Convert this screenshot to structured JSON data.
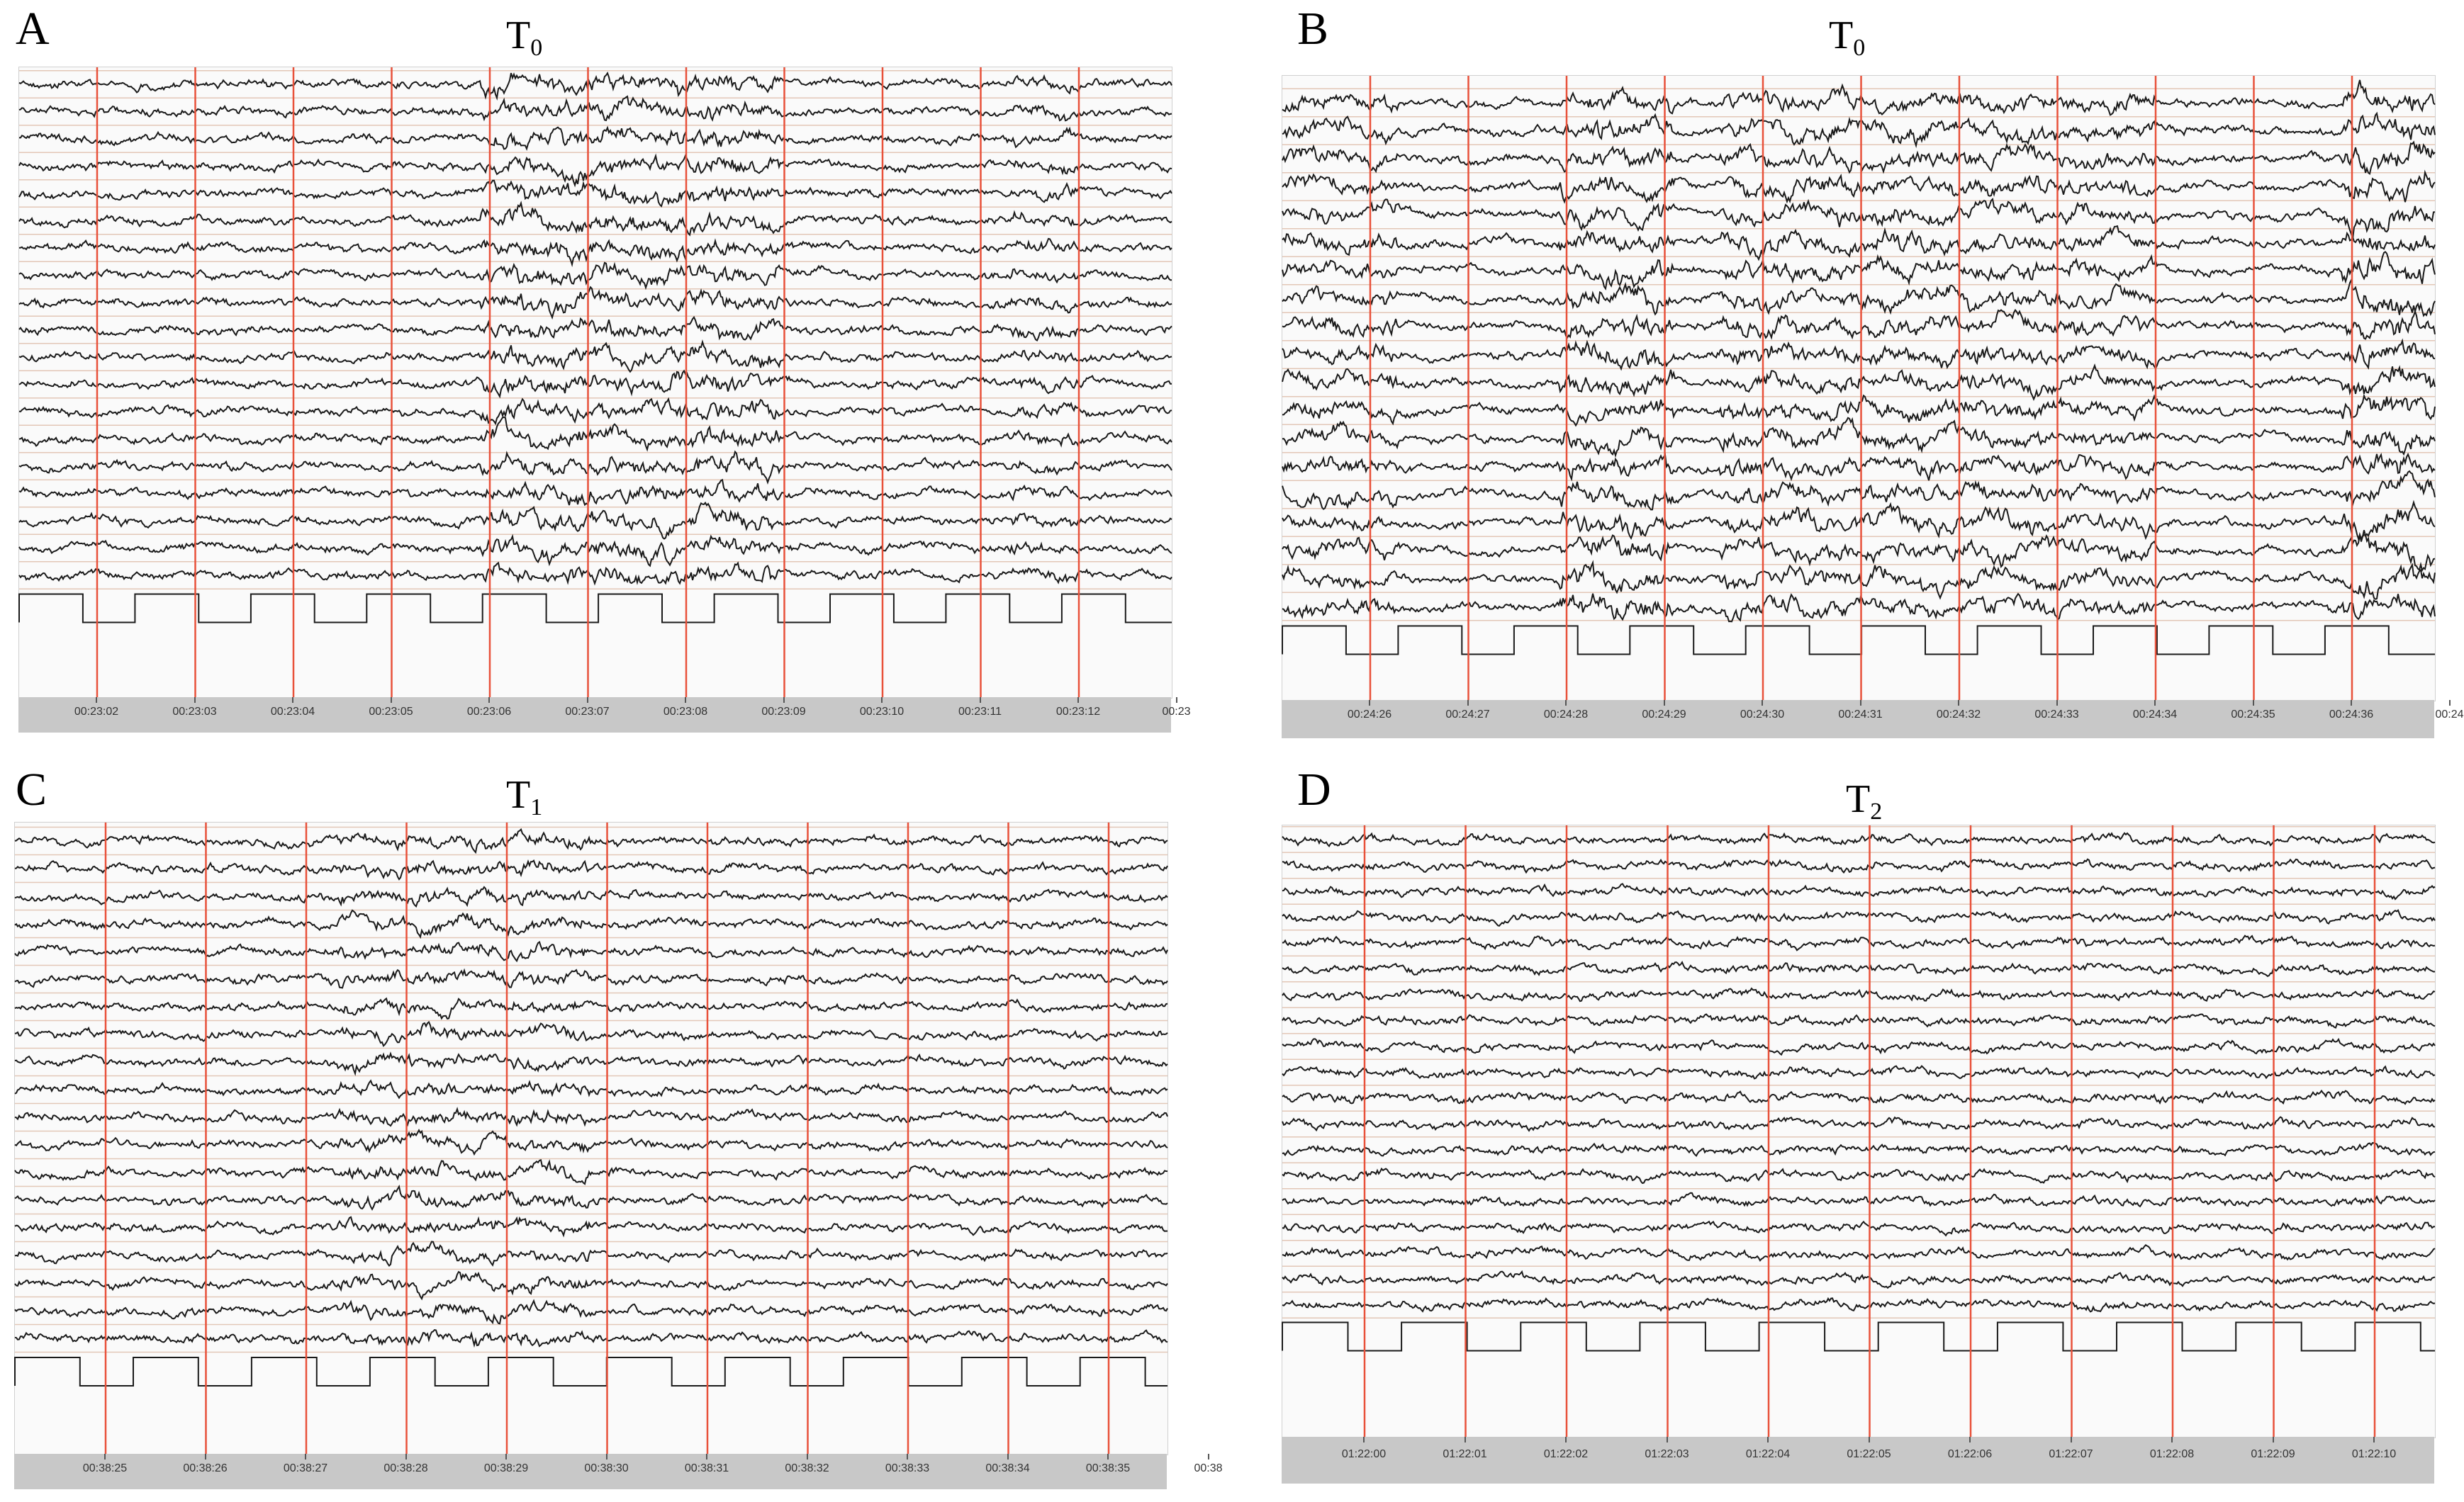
{
  "panels": [
    {
      "id": "A",
      "letter": "A",
      "title_base": "T",
      "title_sub": "0",
      "time_labels": [
        "00:23:02",
        "00:23:03",
        "00:23:04",
        "00:23:05",
        "00:23:06",
        "00:23:07",
        "00:23:08",
        "00:23:09",
        "00:23:10",
        "00:23:11",
        "00:23:12",
        "00:23"
      ],
      "channels": 20,
      "bursts": [
        [
          0.4,
          0.66,
          2.2
        ],
        [
          0.86,
          0.92,
          1.6
        ]
      ]
    },
    {
      "id": "B",
      "letter": "B",
      "title_base": "T",
      "title_sub": "0",
      "time_labels": [
        "00:24:26",
        "00:24:27",
        "00:24:28",
        "00:24:29",
        "00:24:30",
        "00:24:31",
        "00:24:32",
        "00:24:33",
        "00:24:34",
        "00:24:35",
        "00:24:36",
        "00:24"
      ],
      "channels": 20,
      "bursts": [
        [
          0.0,
          0.1,
          2.0
        ],
        [
          0.24,
          0.34,
          2.6
        ],
        [
          0.38,
          0.66,
          2.2
        ],
        [
          0.66,
          0.76,
          2.0
        ],
        [
          0.92,
          1.0,
          2.8
        ]
      ]
    },
    {
      "id": "C",
      "letter": "C",
      "title_base": "T",
      "title_sub": "1",
      "time_labels": [
        "00:38:25",
        "00:38:26",
        "00:38:27",
        "00:38:28",
        "00:38:29",
        "00:38:30",
        "00:38:31",
        "00:38:32",
        "00:38:33",
        "00:38:34",
        "00:38:35",
        "00:38"
      ],
      "channels": 20,
      "bursts": [
        [
          0.28,
          0.5,
          1.7
        ]
      ]
    },
    {
      "id": "D",
      "letter": "D",
      "title_base": "T",
      "title_sub": "2",
      "time_labels": [
        "01:22:00",
        "01:22:01",
        "01:22:02",
        "01:22:03",
        "01:22:04",
        "01:22:05",
        "01:22:06",
        "01:22:07",
        "01:22:08",
        "01:22:09",
        "01:22:10"
      ],
      "channels": 20,
      "bursts": []
    }
  ],
  "colors": {
    "trace": "#1a1a1a",
    "marker": "#e8513a",
    "baseline": "#e3c7b7",
    "frame_bg": "#fafafa",
    "time_bar": "#c8c8c8"
  }
}
